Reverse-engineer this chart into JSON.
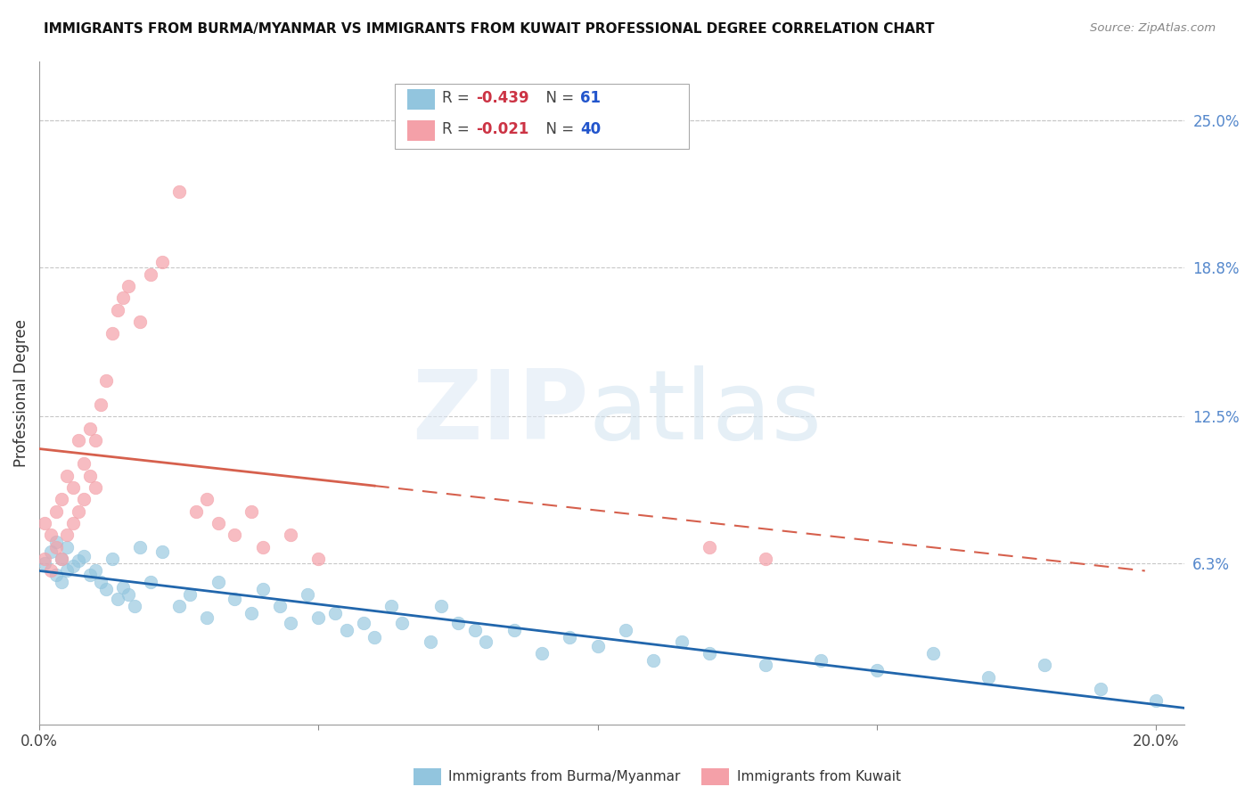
{
  "title": "IMMIGRANTS FROM BURMA/MYANMAR VS IMMIGRANTS FROM KUWAIT PROFESSIONAL DEGREE CORRELATION CHART",
  "source": "Source: ZipAtlas.com",
  "ylabel": "Professional Degree",
  "right_ytick_labels": [
    "25.0%",
    "18.8%",
    "12.5%",
    "6.3%"
  ],
  "right_ytick_values": [
    0.25,
    0.188,
    0.125,
    0.063
  ],
  "xlim": [
    0.0,
    0.205
  ],
  "ylim": [
    -0.005,
    0.275
  ],
  "xtick_values": [
    0.0,
    0.05,
    0.1,
    0.15,
    0.2
  ],
  "xtick_labels": [
    "0.0%",
    "",
    "",
    "",
    "20.0%"
  ],
  "legend_label_1": "Immigrants from Burma/Myanmar",
  "legend_label_2": "Immigrants from Kuwait",
  "series1_color": "#92c5de",
  "series2_color": "#f4a0a8",
  "series1_line_color": "#2166ac",
  "series2_line_color": "#d6604d",
  "series1_R": -0.439,
  "series1_N": 61,
  "series2_R": -0.021,
  "series2_N": 40,
  "grid_color": "#c8c8c8",
  "background_color": "#ffffff",
  "series1_x": [
    0.001,
    0.002,
    0.003,
    0.003,
    0.004,
    0.004,
    0.005,
    0.005,
    0.006,
    0.007,
    0.008,
    0.009,
    0.01,
    0.011,
    0.012,
    0.013,
    0.014,
    0.015,
    0.016,
    0.017,
    0.018,
    0.02,
    0.022,
    0.025,
    0.027,
    0.03,
    0.032,
    0.035,
    0.038,
    0.04,
    0.043,
    0.045,
    0.048,
    0.05,
    0.053,
    0.055,
    0.058,
    0.06,
    0.063,
    0.065,
    0.07,
    0.072,
    0.075,
    0.078,
    0.08,
    0.085,
    0.09,
    0.095,
    0.1,
    0.105,
    0.11,
    0.115,
    0.12,
    0.13,
    0.14,
    0.15,
    0.16,
    0.17,
    0.18,
    0.19,
    0.2
  ],
  "series1_y": [
    0.063,
    0.068,
    0.058,
    0.072,
    0.065,
    0.055,
    0.07,
    0.06,
    0.062,
    0.064,
    0.066,
    0.058,
    0.06,
    0.055,
    0.052,
    0.065,
    0.048,
    0.053,
    0.05,
    0.045,
    0.07,
    0.055,
    0.068,
    0.045,
    0.05,
    0.04,
    0.055,
    0.048,
    0.042,
    0.052,
    0.045,
    0.038,
    0.05,
    0.04,
    0.042,
    0.035,
    0.038,
    0.032,
    0.045,
    0.038,
    0.03,
    0.045,
    0.038,
    0.035,
    0.03,
    0.035,
    0.025,
    0.032,
    0.028,
    0.035,
    0.022,
    0.03,
    0.025,
    0.02,
    0.022,
    0.018,
    0.025,
    0.015,
    0.02,
    0.01,
    0.005
  ],
  "series2_x": [
    0.001,
    0.001,
    0.002,
    0.002,
    0.003,
    0.003,
    0.004,
    0.004,
    0.005,
    0.005,
    0.006,
    0.006,
    0.007,
    0.007,
    0.008,
    0.008,
    0.009,
    0.009,
    0.01,
    0.01,
    0.011,
    0.012,
    0.013,
    0.014,
    0.015,
    0.016,
    0.018,
    0.02,
    0.022,
    0.025,
    0.028,
    0.03,
    0.032,
    0.035,
    0.038,
    0.04,
    0.045,
    0.05,
    0.12,
    0.13
  ],
  "series2_y": [
    0.08,
    0.065,
    0.075,
    0.06,
    0.085,
    0.07,
    0.09,
    0.065,
    0.1,
    0.075,
    0.095,
    0.08,
    0.115,
    0.085,
    0.105,
    0.09,
    0.12,
    0.1,
    0.115,
    0.095,
    0.13,
    0.14,
    0.16,
    0.17,
    0.175,
    0.18,
    0.165,
    0.185,
    0.19,
    0.22,
    0.085,
    0.09,
    0.08,
    0.075,
    0.085,
    0.07,
    0.075,
    0.065,
    0.07,
    0.065
  ]
}
